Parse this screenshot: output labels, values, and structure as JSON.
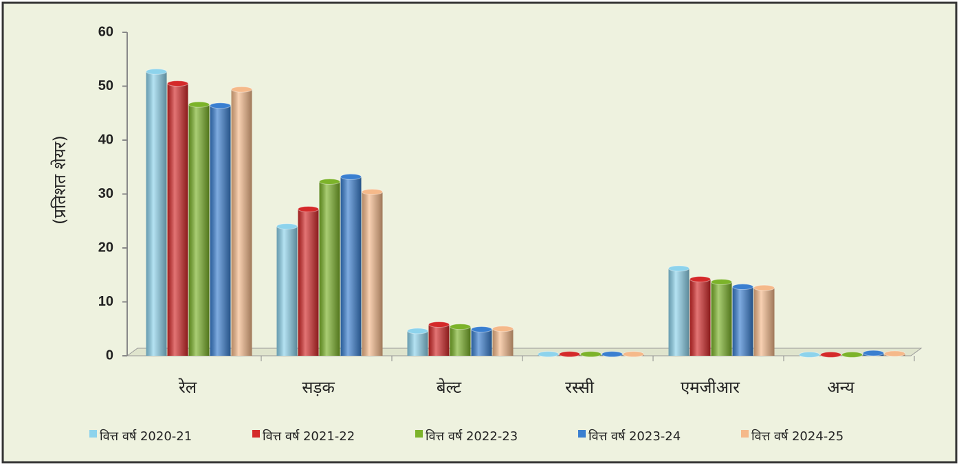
{
  "chart_data": {
    "type": "bar",
    "y_label": "(प्रतिशत शेयर)",
    "categories": [
      "रेल",
      "सड़क",
      "बेल्ट",
      "रस्सी",
      "एमजीआर",
      "अन्य"
    ],
    "series": [
      {
        "name": "वित्त वर्ष 2020-21",
        "color": "#8dd3ec",
        "values": [
          52.7,
          24.0,
          4.6,
          0.3,
          16.2,
          0.2
        ]
      },
      {
        "name": "वित्त वर्ष 2021-22",
        "color": "#d42a2a",
        "values": [
          50.5,
          27.2,
          5.8,
          0.3,
          14.2,
          0.2
        ]
      },
      {
        "name": "वित्त वर्ष 2022-23",
        "color": "#7cb32a",
        "values": [
          46.6,
          32.3,
          5.4,
          0.3,
          13.7,
          0.2
        ]
      },
      {
        "name": "वित्त वर्ष 2023-24",
        "color": "#3a7fd0",
        "values": [
          46.4,
          33.2,
          4.9,
          0.3,
          12.8,
          0.5
        ]
      },
      {
        "name": "वित्त वर्ष 2024-25",
        "color": "#f5b98a",
        "values": [
          49.4,
          30.4,
          5.0,
          0.3,
          12.6,
          0.4
        ]
      }
    ],
    "ylim": [
      0,
      60
    ],
    "yticks": [
      0,
      10,
      20,
      30,
      40,
      50,
      60
    ],
    "legend": "bottom"
  }
}
